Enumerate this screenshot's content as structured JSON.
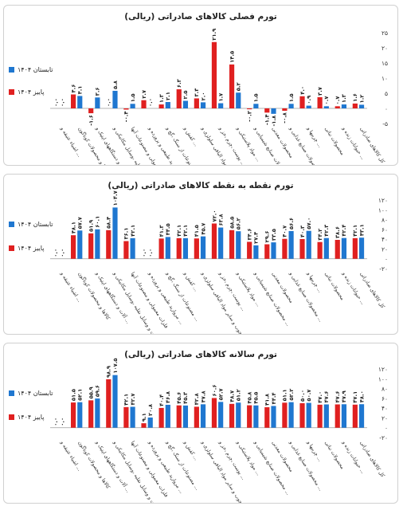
{
  "chart_data": [
    {
      "type": "bar",
      "title": "تورم فصلی کالاهای صادراتی (ریالی)",
      "ylim": [
        -5,
        25
      ],
      "yticks": [
        -5,
        0,
        5,
        10,
        15,
        20,
        25
      ],
      "legend_position": "left",
      "categories": [
        "اشیاء عتیقه و ...",
        "کالاها و محصولات کوناگون",
        "آلات و دستگاههای اپتیک و ...",
        "ماشین آلات و وسایل نقلیه ،وسایل مکانیکی و ...",
        "فلزات معمولی و مصنوعات آنها",
        "مروارید طبیعی و پرورده و ...",
        "مصنوعات از سنگ ،گچ و ...",
        "کفش و ...",
        "خمیر چوب و سایر مواد الیافی سلولزی و ...",
        "پوست ،چرم ،خز و ...",
        "مواد پلاستیکی و ...",
        "محصولات صنایع شیمیایی و ...",
        "محصولات معدنی",
        "محصولات صنایع غذایی و ...",
        "چربیها و ...",
        "محصولات نباتی",
        "حیوانات زنده و ...",
        "کل کالاهای صادراتی"
      ],
      "series": [
        {
          "name": "تابستان ۱۴۰۴",
          "color": "#1f77d0",
          "values": [
            0.0,
            4.1,
            3.6,
            5.8,
            1.5,
            0.0,
            2.1,
            2.5,
            2.0,
            1.7,
            5.2,
            1.5,
            -1.8,
            1.5,
            0.9,
            0.7,
            1.3,
            1.2
          ],
          "labels": [
            "۰.۰",
            "۴.۱",
            "۳.۶",
            "۵.۸",
            "۱.۵",
            "۰.۰",
            "۲.۱",
            "۲.۵",
            "۲.۰",
            "۱.۷",
            "۵.۲",
            "۱.۵",
            "-۱.۸",
            "۱.۵",
            "۰.۹",
            "۰.۷",
            "۱.۳",
            "۱.۲"
          ]
        },
        {
          "name": "پاییز ۱۴۰۴",
          "color": "#e02020",
          "values": [
            0.0,
            4.6,
            -1.6,
            0.0,
            -0.4,
            2.7,
            1.3,
            6.3,
            3.3,
            21.9,
            14.5,
            -0.3,
            -1.4,
            -0.8,
            4.0,
            3.7,
            0.7,
            1.6
          ],
          "labels": [
            "۰.۰",
            "۴.۶",
            "-۱.۶",
            "۰.۰",
            "-۰.۴",
            "۲.۷",
            "۱.۳",
            "۶.۳",
            "۳.۳",
            "۲۱.۹",
            "۱۴.۵",
            "-۰.۳",
            "-۱.۴",
            "-۰.۸",
            "۴.۰",
            "۳.۷",
            "۰.۷",
            "۱.۶"
          ]
        }
      ]
    },
    {
      "type": "bar",
      "title": "تورم نقطه به نقطه کالاهای صادراتی (ریالی)",
      "ylim": [
        -20,
        120
      ],
      "yticks": [
        -20,
        0,
        20,
        40,
        60,
        80,
        100,
        120
      ],
      "legend_position": "left",
      "categories": [
        "اشیاء عتیقه و ...",
        "کالاها و محصولات کوناگون",
        "آلات و دستگاههای اپتیک و ...",
        "ماشین آلات و وسایل نقلیه ،وسایل مکانیکی و ...",
        "فلزات معمولی و مصنوعات آنها",
        "مروارید طبیعی و پرورده و ...",
        "مصنوعات از سنگ ،گچ و ...",
        "کفش و ...",
        "خمیر چوب و سایر مواد الیافی سلولزی و ...",
        "پوست ،چرم ،خز و ...",
        "مواد پلاستیکی و ...",
        "محصولات صنایع شیمیایی و ...",
        "محصولات معدنی",
        "محصولات صنایع غذایی و ...",
        "چربیها و ...",
        "محصولات نباتی",
        "حیوانات زنده و ...",
        "کل کالاهای صادراتی"
      ],
      "series": [
        {
          "name": "تابستان ۱۴۰۴",
          "color": "#1f77d0",
          "values": [
            0.0,
            57.7,
            60.1,
            104.7,
            42.1,
            0.0,
            44.5,
            42.1,
            45.7,
            63.8,
            56.2,
            27.4,
            33.5,
            56.6,
            57.0,
            42.3,
            42.4,
            43.1
          ],
          "labels": [
            "۰.۰",
            "۵۷.۷",
            "۶۰.۱",
            "۱۰۴.۷",
            "۴۲.۱",
            "۰.۰",
            "۴۴.۵",
            "۴۲.۱",
            "۴۵.۷",
            "۶۳.۸",
            "۵۶.۲",
            "۲۷.۴",
            "۳۳.۵",
            "۵۶.۶",
            "۵۷.۰",
            "۴۲.۳",
            "۴۲.۴",
            "۴۳.۱"
          ]
        },
        {
          "name": "پاییز ۱۴۰۴",
          "color": "#e02020",
          "values": [
            0.0,
            48.1,
            51.9,
            58.4,
            36.1,
            0.0,
            41.3,
            42.1,
            41.5,
            72.0,
            58.5,
            34.6,
            29.6,
            40.7,
            40.3,
            34.2,
            38.6,
            42.1
          ],
          "labels": [
            "۰.۰",
            "۴۸.۱",
            "۵۱.۹",
            "۵۸.۴",
            "۳۶.۱",
            "۰.۰",
            "۴۱.۳",
            "۴۲.۱",
            "۴۱.۵",
            "۷۲.۰",
            "۵۸.۵",
            "۳۴.۶",
            "۲۹.۶",
            "۴۰.۷",
            "۴۰.۳",
            "۳۴.۲",
            "۳۸.۶",
            "۴۲.۱"
          ]
        }
      ]
    },
    {
      "type": "bar",
      "title": "تورم سالانه کالاهای صادراتی (ریالی)",
      "ylim": [
        -20,
        120
      ],
      "yticks": [
        -20,
        0,
        20,
        40,
        60,
        80,
        100,
        120
      ],
      "legend_position": "left",
      "categories": [
        "اشیاء عتیقه و ...",
        "کالاها و محصولات کوناگون",
        "آلات و دستگاههای اپتیک و ...",
        "ماشین آلات و وسایل نقلیه ،وسایل مکانیکی و ...",
        "فلزات معمولی و مصنوعات آنها",
        "مروارید طبیعی و پرورده و ...",
        "مصنوعات از سنگ ،گچ و ...",
        "کفش و ...",
        "خمیر چوب و سایر مواد الیافی سلولزی و ...",
        "پوست ،چرم ،خز و ...",
        "مواد پلاستیکی و ...",
        "محصولات صنایع شیمیایی و ...",
        "محصولات معدنی",
        "محصولات صنایع غذایی و ...",
        "چربیها و ...",
        "محصولات نباتی",
        "حیوانات زنده و ...",
        "کل کالاهای صادراتی"
      ],
      "series": [
        {
          "name": "تابستان ۱۴۰۴",
          "color": "#1f77d0",
          "values": [
            0.0,
            52.1,
            59.6,
            107.5,
            42.7,
            20.8,
            46.8,
            45.3,
            47.8,
            52.7,
            51.2,
            45.5,
            44.4,
            52.2,
            50.7,
            47.6,
            47.9,
            48.0
          ],
          "labels": [
            "۰.۰",
            "۵۲.۱",
            "۵۹.۶",
            "۱۰۷.۵",
            "۴۲.۷",
            "۲۰.۸",
            "۴۶.۸",
            "۴۵.۳",
            "۴۷.۸",
            "۵۲.۷",
            "۵۱.۲",
            "۴۵.۵",
            "۴۴.۴",
            "۵۲.۲",
            "۵۰.۷",
            "۴۷.۶",
            "۴۷.۹",
            "۴۸.۰"
          ]
        },
        {
          "name": "پاییز ۱۴۰۴",
          "color": "#e02020",
          "values": [
            0.0,
            51.5,
            55.9,
            98.9,
            42.1,
            9.1,
            40.4,
            45.6,
            42.8,
            60.6,
            48.7,
            45.8,
            41.8,
            51.1,
            50.0,
            47.0,
            47.6,
            47.1
          ],
          "labels": [
            "۰.۰",
            "۵۱.۵",
            "۵۵.۹",
            "۹۸.۹",
            "۴۲.۱",
            "۹.۱",
            "۴۰.۴",
            "۴۵.۶",
            "۴۲.۸",
            "۶۰.۶",
            "۴۸.۷",
            "۴۵.۸",
            "۴۱.۸",
            "۵۱.۱",
            "۵۰.۰",
            "۴۷.۰",
            "۴۷.۶",
            "۴۷.۱"
          ]
        }
      ]
    }
  ]
}
